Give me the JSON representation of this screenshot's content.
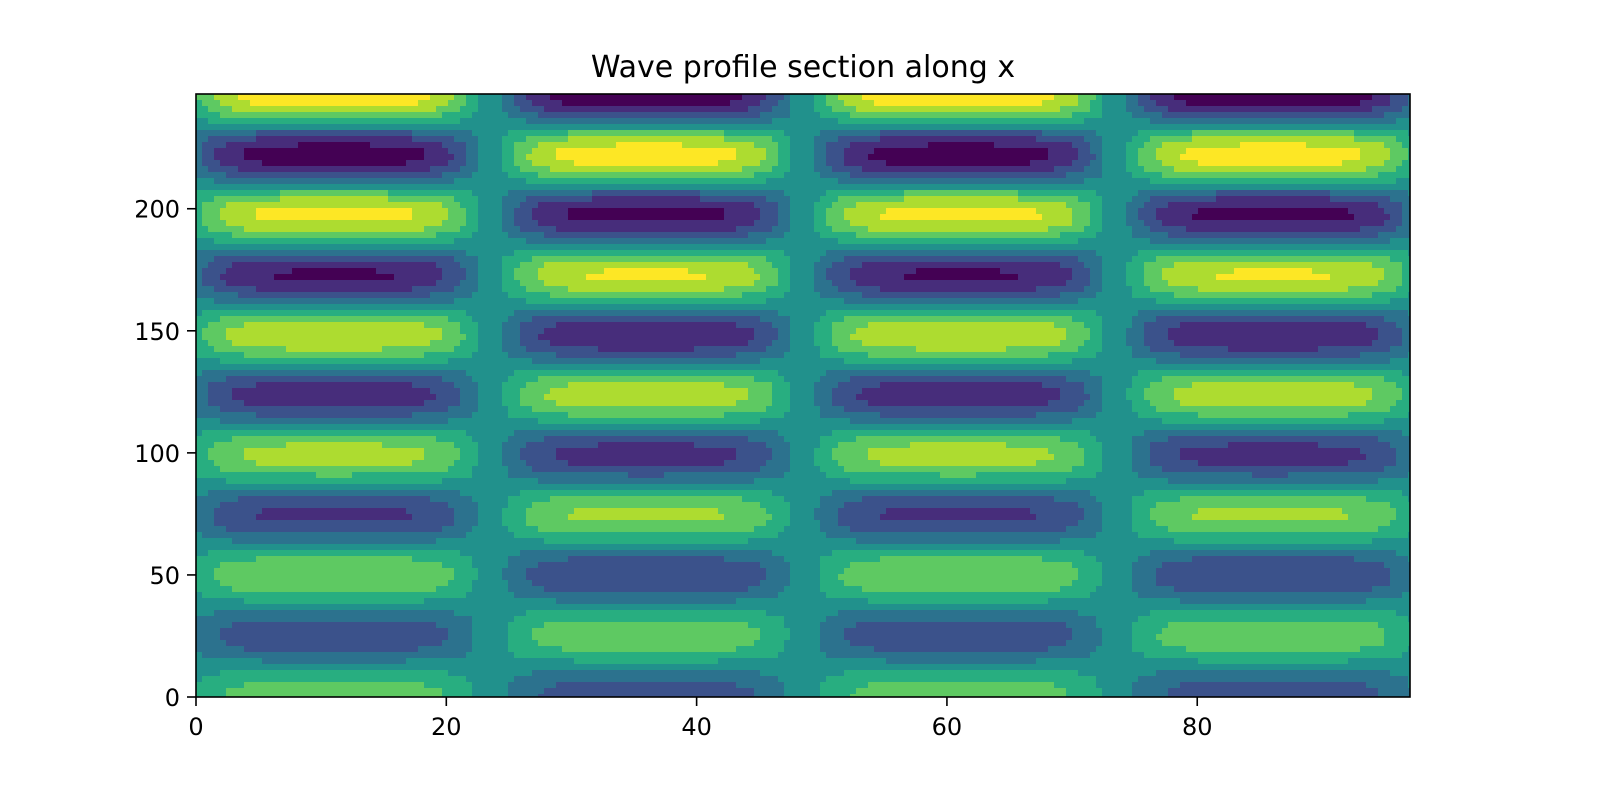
{
  "chart_data": {
    "type": "contour",
    "title": "Wave profile section along x",
    "xlabel": "",
    "ylabel": "",
    "xlim": [
      0,
      97
    ],
    "ylim": [
      0,
      247
    ],
    "x_ticks": [
      0,
      20,
      40,
      60,
      80
    ],
    "y_ticks": [
      0,
      50,
      100,
      150,
      200
    ],
    "colormap": "viridis",
    "levels": 9,
    "colors": [
      "#440154",
      "#472d7b",
      "#3b528b",
      "#2c728e",
      "#21918c",
      "#28ae80",
      "#5ec962",
      "#addc30",
      "#fde725"
    ],
    "grid": false,
    "field": {
      "pattern": "alternating blobs in a checkerboard of cells",
      "columns_x_centers": [
        11,
        36,
        61,
        86
      ],
      "column_half_width": 12,
      "phase_shift_between_columns": 25,
      "rows_y_centers": [
        13,
        38,
        62,
        87,
        111,
        136,
        160,
        185,
        209,
        234
      ],
      "amplitude_growth_with_y": "increasing",
      "peak_value_top": 0.95,
      "peak_value_bottom": 0.45
    }
  }
}
